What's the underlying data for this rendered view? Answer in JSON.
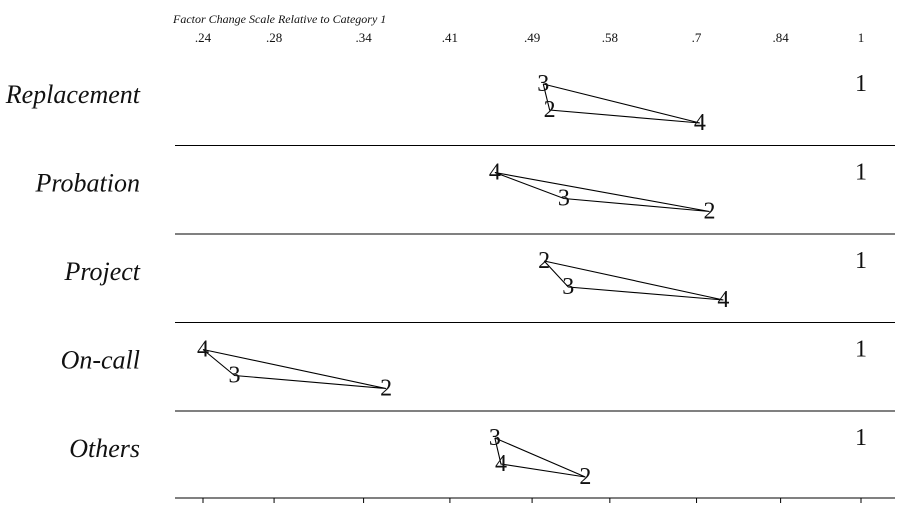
{
  "chart_data": {
    "type": "scatter",
    "title": "Factor Change Scale Relative to Category 1",
    "x_scale": "log",
    "xlim": [
      0.235,
      1.03
    ],
    "x_ticks": [
      ".24",
      ".28",
      ".34",
      ".41",
      ".49",
      ".58",
      ".7",
      ".84",
      "1"
    ],
    "x_tick_values": [
      0.24,
      0.28,
      0.34,
      0.41,
      0.49,
      0.58,
      0.7,
      0.84,
      1.0
    ],
    "grid": false,
    "legend": "none",
    "series": [
      {
        "name": "Replacement",
        "points": [
          {
            "label": "1",
            "x": 1.0
          },
          {
            "label": "3",
            "x": 0.502
          },
          {
            "label": "2",
            "x": 0.509
          },
          {
            "label": "4",
            "x": 0.705
          }
        ]
      },
      {
        "name": "Probation",
        "points": [
          {
            "label": "1",
            "x": 1.0
          },
          {
            "label": "4",
            "x": 0.452
          },
          {
            "label": "3",
            "x": 0.525
          },
          {
            "label": "2",
            "x": 0.72
          }
        ]
      },
      {
        "name": "Project",
        "points": [
          {
            "label": "1",
            "x": 1.0
          },
          {
            "label": "2",
            "x": 0.503
          },
          {
            "label": "3",
            "x": 0.53
          },
          {
            "label": "4",
            "x": 0.742
          }
        ]
      },
      {
        "name": "On-call",
        "points": [
          {
            "label": "1",
            "x": 1.0
          },
          {
            "label": "4",
            "x": 0.24
          },
          {
            "label": "3",
            "x": 0.257
          },
          {
            "label": "2",
            "x": 0.357
          }
        ]
      },
      {
        "name": "Others",
        "points": [
          {
            "label": "1",
            "x": 1.0
          },
          {
            "label": "3",
            "x": 0.452
          },
          {
            "label": "4",
            "x": 0.458
          },
          {
            "label": "2",
            "x": 0.55
          }
        ]
      }
    ]
  }
}
